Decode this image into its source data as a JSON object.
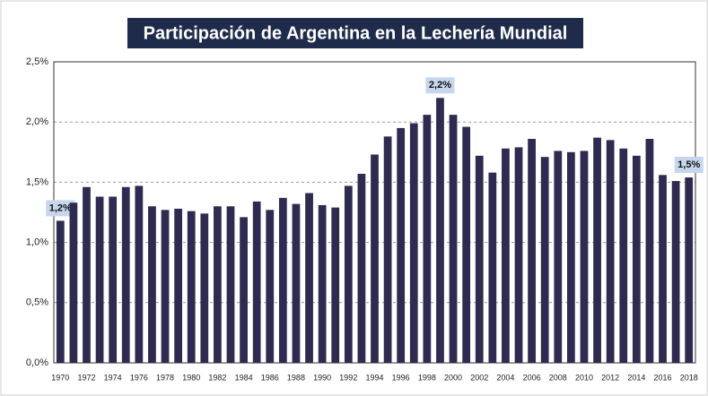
{
  "chart_data": {
    "type": "bar",
    "title": "Participación de Argentina en la Lechería Mundial",
    "categories": [
      "1970",
      null,
      "1972",
      null,
      "1974",
      null,
      "1976",
      null,
      "1978",
      null,
      "1980",
      null,
      "1982",
      null,
      "1984",
      null,
      "1986",
      null,
      "1988",
      null,
      "1990",
      null,
      "1992",
      null,
      "1994",
      null,
      "1996",
      null,
      "1998",
      null,
      "2000",
      null,
      "2002",
      null,
      "2004",
      null,
      "2006",
      null,
      "2008",
      null,
      "2010",
      null,
      "2012",
      null,
      "2014",
      null,
      "2016",
      null,
      "2018"
    ],
    "values": [
      1.18,
      1.33,
      1.46,
      1.38,
      1.38,
      1.46,
      1.47,
      1.3,
      1.27,
      1.28,
      1.26,
      1.24,
      1.3,
      1.3,
      1.21,
      1.34,
      1.27,
      1.37,
      1.32,
      1.41,
      1.31,
      1.29,
      1.47,
      1.57,
      1.73,
      1.88,
      1.95,
      1.99,
      2.06,
      2.2,
      2.06,
      1.96,
      1.72,
      1.58,
      1.78,
      1.79,
      1.86,
      1.71,
      1.76,
      1.75,
      1.76,
      1.87,
      1.85,
      1.78,
      1.72,
      1.86,
      1.56,
      1.51,
      1.54
    ],
    "value_labels": [
      "1,2%",
      null,
      null,
      null,
      null,
      null,
      null,
      null,
      null,
      null,
      null,
      null,
      null,
      null,
      null,
      null,
      null,
      null,
      null,
      null,
      null,
      null,
      null,
      null,
      null,
      null,
      null,
      null,
      null,
      "2,2%",
      null,
      null,
      null,
      null,
      null,
      null,
      null,
      null,
      null,
      null,
      null,
      null,
      null,
      null,
      null,
      null,
      null,
      null,
      "1,5%"
    ],
    "color": "#2e2a50",
    "ylim": [
      0,
      2.5
    ],
    "yticks": [
      {
        "value": 0,
        "label": "0,0%"
      },
      {
        "value": 0.5,
        "label": "0,5%"
      },
      {
        "value": 1,
        "label": "1,0%"
      },
      {
        "value": 1.5,
        "label": "1,5%"
      },
      {
        "value": 2,
        "label": "2,0%"
      },
      {
        "value": 2.5,
        "label": "2,5%"
      }
    ],
    "grid": true
  }
}
